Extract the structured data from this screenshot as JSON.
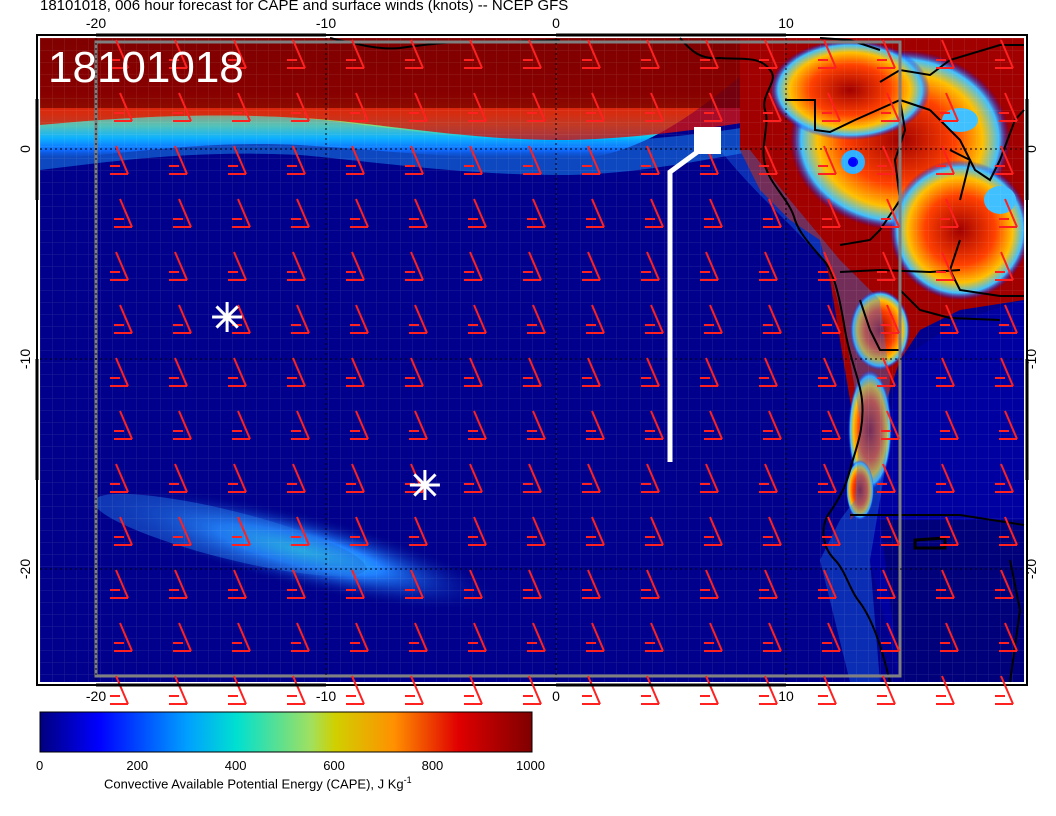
{
  "title": "18101018, 006 hour forecast for CAPE and surface winds (knots) -- NCEP GFS",
  "map_label": "18101018",
  "axes": {
    "x_ticks": [
      "-20",
      "-10",
      "0",
      "10"
    ],
    "y_ticks": [
      "0",
      "-10",
      "-20"
    ]
  },
  "colorbar": {
    "ticks": [
      "0",
      "200",
      "400",
      "600",
      "800",
      "1000"
    ],
    "label_main": "Convective Available Potential Energy (CAPE), J Kg",
    "label_sup": "-1",
    "colors": [
      "#00007f",
      "#0000ff",
      "#00c8ff",
      "#00e0c0",
      "#c8c800",
      "#ff9000",
      "#ff0000",
      "#7f0000"
    ]
  },
  "markers": [
    {
      "name": "asterisk-1",
      "lon": -14.3,
      "lat": -8
    },
    {
      "name": "asterisk-2",
      "lon": -5.7,
      "lat": -16
    }
  ],
  "colors": {
    "wind_barb": "#ff2020",
    "flight_track": "#ffffff",
    "ocean": "#00007f"
  }
}
